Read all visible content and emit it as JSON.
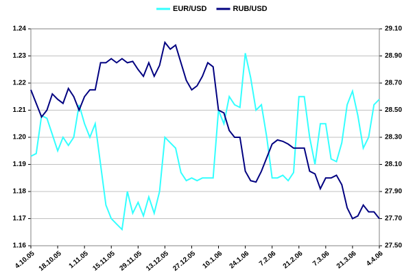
{
  "chart_data": {
    "type": "line",
    "categories": [
      "4.10.05",
      null,
      null,
      null,
      null,
      "18.10.05",
      null,
      null,
      null,
      null,
      "1.11.05",
      null,
      null,
      null,
      null,
      "15.11.05",
      null,
      null,
      null,
      null,
      "29.11.05",
      null,
      null,
      null,
      null,
      "13.12.05",
      null,
      null,
      null,
      null,
      "27.12.05",
      null,
      null,
      null,
      null,
      "10.1.06",
      null,
      null,
      null,
      null,
      "24.1.06",
      null,
      null,
      null,
      null,
      "7.2.06",
      null,
      null,
      null,
      null,
      "21.2.06",
      null,
      null,
      null,
      null,
      "7.3.06",
      null,
      null,
      null,
      null,
      "21.3.06",
      null,
      null,
      null,
      null,
      "4.4.06"
    ],
    "series": [
      {
        "name": "EUR/USD",
        "color": "#33ffff",
        "values": [
          1.193,
          1.194,
          1.208,
          1.207,
          1.201,
          1.195,
          1.2,
          1.197,
          1.2,
          1.212,
          1.205,
          1.2,
          1.205,
          1.19,
          1.175,
          1.17,
          1.168,
          1.166,
          1.18,
          1.172,
          1.176,
          1.171,
          1.178,
          1.172,
          1.18,
          1.2,
          1.198,
          1.196,
          1.187,
          1.184,
          1.185,
          1.184,
          1.185,
          1.185,
          1.185,
          1.21,
          1.205,
          1.215,
          1.212,
          1.211,
          1.231,
          1.222,
          1.21,
          1.212,
          1.2,
          1.185,
          1.185,
          1.186,
          1.184,
          1.187,
          1.215,
          1.215,
          1.2,
          1.19,
          1.205,
          1.205,
          1.192,
          1.191,
          1.198,
          1.212,
          1.217,
          1.208,
          1.196,
          1.2,
          1.212,
          1.214
        ]
      },
      {
        "name": "RUB/USD",
        "color": "#000080",
        "axis": "y2",
        "values": [
          28.65,
          28.55,
          28.45,
          28.5,
          28.62,
          28.58,
          28.55,
          28.66,
          28.6,
          28.5,
          28.6,
          28.65,
          28.65,
          28.85,
          28.85,
          28.88,
          28.85,
          28.88,
          28.85,
          28.86,
          28.8,
          28.75,
          28.85,
          28.75,
          28.83,
          29.0,
          28.95,
          28.98,
          28.85,
          28.72,
          28.65,
          28.68,
          28.75,
          28.85,
          28.82,
          28.5,
          28.48,
          28.35,
          28.3,
          28.3,
          28.05,
          27.98,
          27.97,
          28.05,
          28.15,
          28.25,
          28.28,
          28.27,
          28.25,
          28.22,
          28.22,
          28.22,
          28.05,
          28.03,
          27.92,
          28.0,
          28.0,
          28.02,
          27.95,
          27.78,
          27.7,
          27.72,
          27.8,
          27.75,
          27.75,
          27.7
        ]
      }
    ],
    "ylim": [
      1.16,
      1.24
    ],
    "yticks": [
      1.16,
      1.17,
      1.18,
      1.19,
      {
        "value": 1.2,
        "label": "1.20"
      },
      1.21,
      1.22,
      1.23,
      1.24
    ],
    "y2lim": [
      27.5,
      29.1
    ],
    "y2ticks": [
      {
        "value": 27.5,
        "label": "27.50"
      },
      {
        "value": 27.7,
        "label": "27.70"
      },
      {
        "value": 27.9,
        "label": "27.90"
      },
      {
        "value": 28.1,
        "label": "28.10"
      },
      {
        "value": 28.3,
        "label": "28.30"
      },
      {
        "value": 28.5,
        "label": "28.50"
      },
      {
        "value": 28.7,
        "label": "28.70"
      },
      {
        "value": 28.9,
        "label": "28.90"
      },
      {
        "value": 29.1,
        "label": "29.10"
      }
    ],
    "grid": true,
    "legend": "top"
  }
}
